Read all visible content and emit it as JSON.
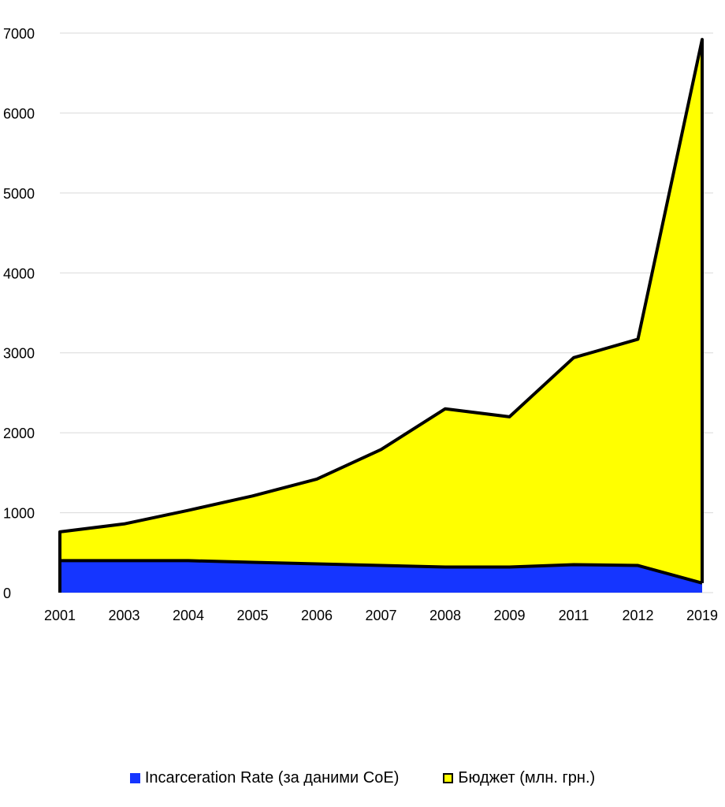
{
  "chart_data": {
    "type": "area",
    "stacked": true,
    "categories": [
      "2001",
      "2003",
      "2004",
      "2005",
      "2006",
      "2007",
      "2008",
      "2009",
      "2011",
      "2012",
      "2019"
    ],
    "series": [
      {
        "name": "Incarceration Rate (за даними CoE)",
        "color": "#1535ff",
        "values": [
          400,
          400,
          400,
          380,
          360,
          340,
          320,
          320,
          350,
          340,
          120
        ]
      },
      {
        "name": "Бюджет (млн. грн.)",
        "color": "#ffff00",
        "values": [
          360,
          460,
          630,
          830,
          1060,
          1450,
          1980,
          1880,
          2590,
          2830,
          6800
        ]
      }
    ],
    "ylim": [
      0,
      7000
    ],
    "yticks": [
      0,
      1000,
      2000,
      3000,
      4000,
      5000,
      6000,
      7000
    ],
    "grid": true,
    "legend_position": "bottom",
    "title": "",
    "xlabel": "",
    "ylabel": ""
  }
}
